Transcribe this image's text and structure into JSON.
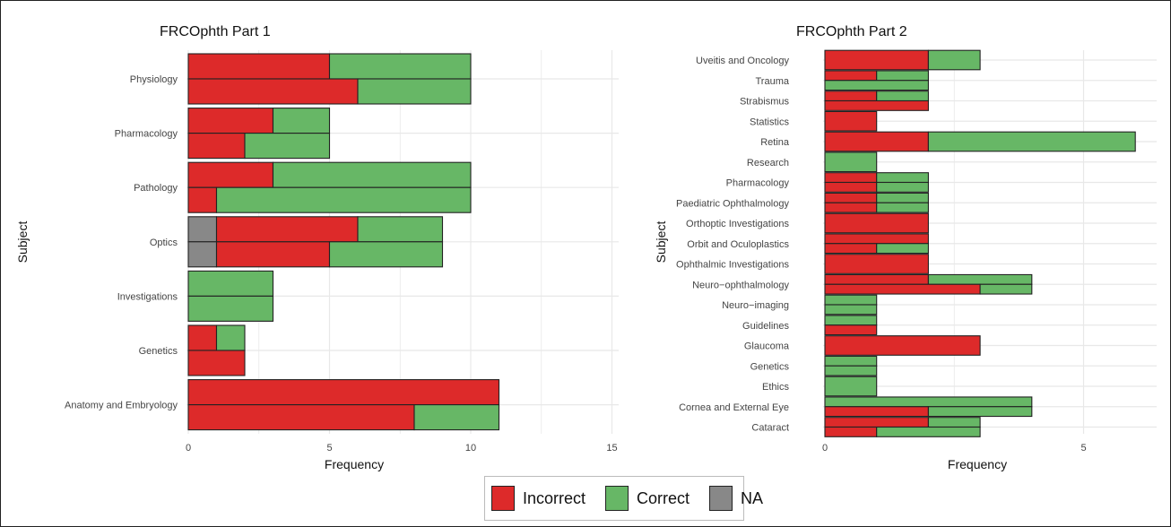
{
  "colors": {
    "incorrect": "#dd2a2a",
    "correct": "#67b766",
    "na": "#888888",
    "grid": "#e8e8e8",
    "bar_border": "#222222"
  },
  "legend": {
    "items": [
      {
        "label": "Incorrect",
        "color_key": "incorrect"
      },
      {
        "label": "Correct",
        "color_key": "correct"
      },
      {
        "label": "NA",
        "color_key": "na"
      }
    ]
  },
  "chart_data": [
    {
      "type": "bar",
      "orientation": "horizontal",
      "stacked": true,
      "title": "FRCOphth Part 1",
      "xlabel": "Frequency",
      "ylabel": "Subject",
      "xlim": [
        0,
        15
      ],
      "xticks": [
        0,
        5,
        10,
        15
      ],
      "grid": true,
      "stack_order": [
        "NA",
        "Incorrect",
        "Correct"
      ],
      "categories": [
        "Physiology",
        "Pharmacology",
        "Pathology",
        "Optics",
        "Investigations",
        "Genetics",
        "Anatomy and Embryology"
      ],
      "rows": [
        {
          "category": "Physiology",
          "bars": [
            {
              "Incorrect": 5,
              "Correct": 5
            },
            {
              "Incorrect": 6,
              "Correct": 4
            }
          ]
        },
        {
          "category": "Pharmacology",
          "bars": [
            {
              "Incorrect": 3,
              "Correct": 2
            },
            {
              "Incorrect": 2,
              "Correct": 3
            }
          ]
        },
        {
          "category": "Pathology",
          "bars": [
            {
              "Incorrect": 3,
              "Correct": 7
            },
            {
              "Incorrect": 1,
              "Correct": 9
            }
          ]
        },
        {
          "category": "Optics",
          "bars": [
            {
              "NA": 1,
              "Incorrect": 5,
              "Correct": 3
            },
            {
              "NA": 1,
              "Incorrect": 4,
              "Correct": 4
            }
          ]
        },
        {
          "category": "Investigations",
          "bars": [
            {
              "Correct": 3
            },
            {
              "Correct": 3
            }
          ]
        },
        {
          "category": "Genetics",
          "bars": [
            {
              "Incorrect": 1,
              "Correct": 1
            },
            {
              "Incorrect": 2
            }
          ]
        },
        {
          "category": "Anatomy and Embryology",
          "bars": [
            {
              "Incorrect": 11
            },
            {
              "Incorrect": 8,
              "Correct": 3
            }
          ]
        }
      ]
    },
    {
      "type": "bar",
      "orientation": "horizontal",
      "stacked": true,
      "title": "FRCOphth Part 2",
      "xlabel": "Frequency",
      "ylabel": "Subject",
      "xlim": [
        0,
        6.3
      ],
      "xticks": [
        0,
        5
      ],
      "grid": true,
      "stack_order": [
        "NA",
        "Incorrect",
        "Correct"
      ],
      "categories": [
        "Uveitis and Oncology",
        "Trauma",
        "Strabismus",
        "Statistics",
        "Retina",
        "Research",
        "Pharmacology",
        "Paediatric Ophthalmology",
        "Orthoptic Investigations",
        "Orbit and Oculoplastics",
        "Ophthalmic Investigations",
        "Neuro−ophthalmology",
        "Neuro−imaging",
        "Guidelines",
        "Glaucoma",
        "Genetics",
        "Ethics",
        "Cornea and External Eye",
        "Cataract"
      ],
      "rows": [
        {
          "category": "Uveitis and Oncology",
          "bars": [
            {
              "Incorrect": 2,
              "Correct": 1
            }
          ]
        },
        {
          "category": "Trauma",
          "bars": [
            {
              "Incorrect": 1,
              "Correct": 1
            },
            {
              "Correct": 2
            }
          ]
        },
        {
          "category": "Strabismus",
          "bars": [
            {
              "Incorrect": 1,
              "Correct": 1
            },
            {
              "Incorrect": 2
            }
          ]
        },
        {
          "category": "Statistics",
          "bars": [
            {
              "Incorrect": 1
            }
          ]
        },
        {
          "category": "Retina",
          "bars": [
            {
              "Incorrect": 2,
              "Correct": 4
            }
          ]
        },
        {
          "category": "Research",
          "bars": [
            {
              "Correct": 1
            }
          ]
        },
        {
          "category": "Pharmacology",
          "bars": [
            {
              "Incorrect": 1,
              "Correct": 1
            },
            {
              "Incorrect": 1,
              "Correct": 1
            }
          ]
        },
        {
          "category": "Paediatric Ophthalmology",
          "bars": [
            {
              "Incorrect": 1,
              "Correct": 1
            },
            {
              "Incorrect": 1,
              "Correct": 1
            }
          ]
        },
        {
          "category": "Orthoptic Investigations",
          "bars": [
            {
              "Incorrect": 2
            }
          ]
        },
        {
          "category": "Orbit and Oculoplastics",
          "bars": [
            {
              "Incorrect": 2
            },
            {
              "Correct": 1,
              "Incorrect": 1
            }
          ]
        },
        {
          "category": "Ophthalmic Investigations",
          "bars": [
            {
              "Incorrect": 2
            }
          ]
        },
        {
          "category": "Neuro−ophthalmology",
          "bars": [
            {
              "Incorrect": 2,
              "Correct": 2
            },
            {
              "Incorrect": 3,
              "Correct": 1
            }
          ]
        },
        {
          "category": "Neuro−imaging",
          "bars": [
            {
              "Correct": 1
            },
            {
              "Correct": 1
            }
          ]
        },
        {
          "category": "Guidelines",
          "bars": [
            {
              "Correct": 1
            },
            {
              "Incorrect": 1
            }
          ]
        },
        {
          "category": "Glaucoma",
          "bars": [
            {
              "Incorrect": 3
            }
          ]
        },
        {
          "category": "Genetics",
          "bars": [
            {
              "Correct": 1
            },
            {
              "Correct": 1
            }
          ]
        },
        {
          "category": "Ethics",
          "bars": [
            {
              "Correct": 1
            }
          ]
        },
        {
          "category": "Cornea and External Eye",
          "bars": [
            {
              "Correct": 4
            },
            {
              "Incorrect": 2,
              "Correct": 2
            }
          ]
        },
        {
          "category": "Cataract",
          "bars": [
            {
              "Incorrect": 2,
              "Correct": 1
            },
            {
              "Incorrect": 1,
              "Correct": 2
            }
          ]
        }
      ]
    }
  ]
}
